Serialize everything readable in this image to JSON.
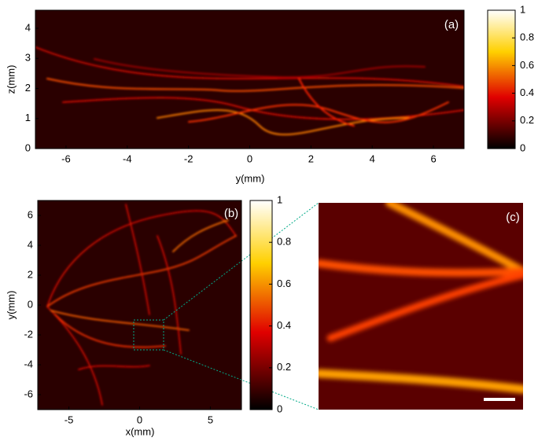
{
  "chart_data": [
    {
      "type": "image",
      "label": "(a)",
      "xlabel": "y(mm)",
      "ylabel": "z(mm)",
      "xlim": [
        -7,
        7
      ],
      "ylim": [
        0,
        4.6
      ],
      "xticks": [
        -6,
        -4,
        -2,
        0,
        2,
        4,
        6
      ],
      "yticks": [
        0,
        1,
        2,
        3,
        4
      ],
      "colorbar": {
        "lim": [
          0,
          1
        ],
        "ticks": [
          0,
          0.2,
          0.4,
          0.6,
          0.8,
          1
        ]
      }
    },
    {
      "type": "image",
      "label": "(b)",
      "xlabel": "x(mm)",
      "ylabel": "y(mm)",
      "xlim": [
        -7.2,
        7.2
      ],
      "ylim": [
        -7,
        7
      ],
      "xticks": [
        -5,
        0,
        5
      ],
      "yticks": [
        -6,
        -4,
        -2,
        0,
        2,
        4,
        6
      ],
      "colorbar": {
        "lim": [
          0,
          1
        ],
        "ticks": [
          0,
          0.2,
          0.4,
          0.6,
          0.8,
          1
        ]
      }
    },
    {
      "type": "image",
      "label": "(c)"
    }
  ]
}
